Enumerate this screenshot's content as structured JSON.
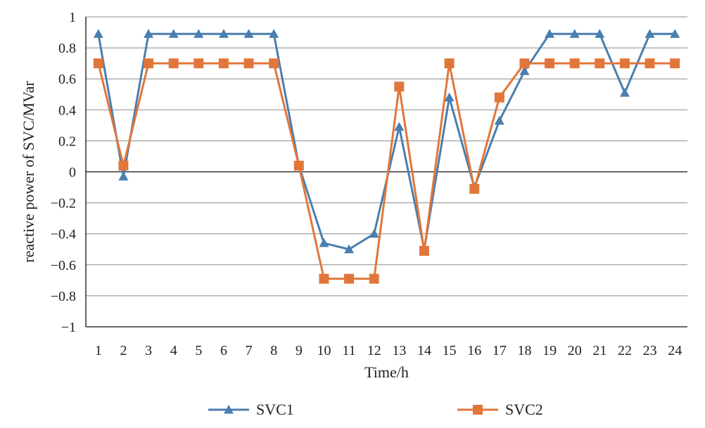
{
  "chart_data": {
    "type": "line",
    "title": "",
    "xlabel": "Time/h",
    "ylabel": "reactive power of SVC/MVar",
    "categories": [
      "1",
      "2",
      "3",
      "4",
      "5",
      "6",
      "7",
      "8",
      "9",
      "10",
      "11",
      "12",
      "13",
      "14",
      "15",
      "16",
      "17",
      "18",
      "19",
      "20",
      "21",
      "22",
      "23",
      "24"
    ],
    "ylim": [
      -1,
      1
    ],
    "yticks": [
      1,
      0.8,
      0.6,
      0.4,
      0.2,
      0,
      -0.2,
      -0.4,
      -0.6,
      -0.8,
      -1
    ],
    "ytick_labels": [
      "1",
      "0.8",
      "0.6",
      "0.4",
      "0.2",
      "0",
      "−0.2",
      "−0.4",
      "−0.6",
      "−0.8",
      "−1"
    ],
    "grid": true,
    "legend_position": "bottom",
    "series": [
      {
        "name": "SVC1",
        "color": "#4a7eaf",
        "marker": "triangle",
        "values": [
          0.89,
          -0.03,
          0.89,
          0.89,
          0.89,
          0.89,
          0.89,
          0.89,
          0.04,
          -0.46,
          -0.5,
          -0.4,
          0.29,
          -0.5,
          0.48,
          -0.1,
          0.33,
          0.65,
          0.89,
          0.89,
          0.89,
          0.51,
          0.89,
          0.89
        ]
      },
      {
        "name": "SVC2",
        "color": "#e1763b",
        "marker": "square",
        "values": [
          0.7,
          0.04,
          0.7,
          0.7,
          0.7,
          0.7,
          0.7,
          0.7,
          0.04,
          -0.69,
          -0.69,
          -0.69,
          0.55,
          -0.51,
          0.7,
          -0.11,
          0.48,
          0.7,
          0.7,
          0.7,
          0.7,
          0.7,
          0.7,
          0.7
        ]
      }
    ]
  }
}
